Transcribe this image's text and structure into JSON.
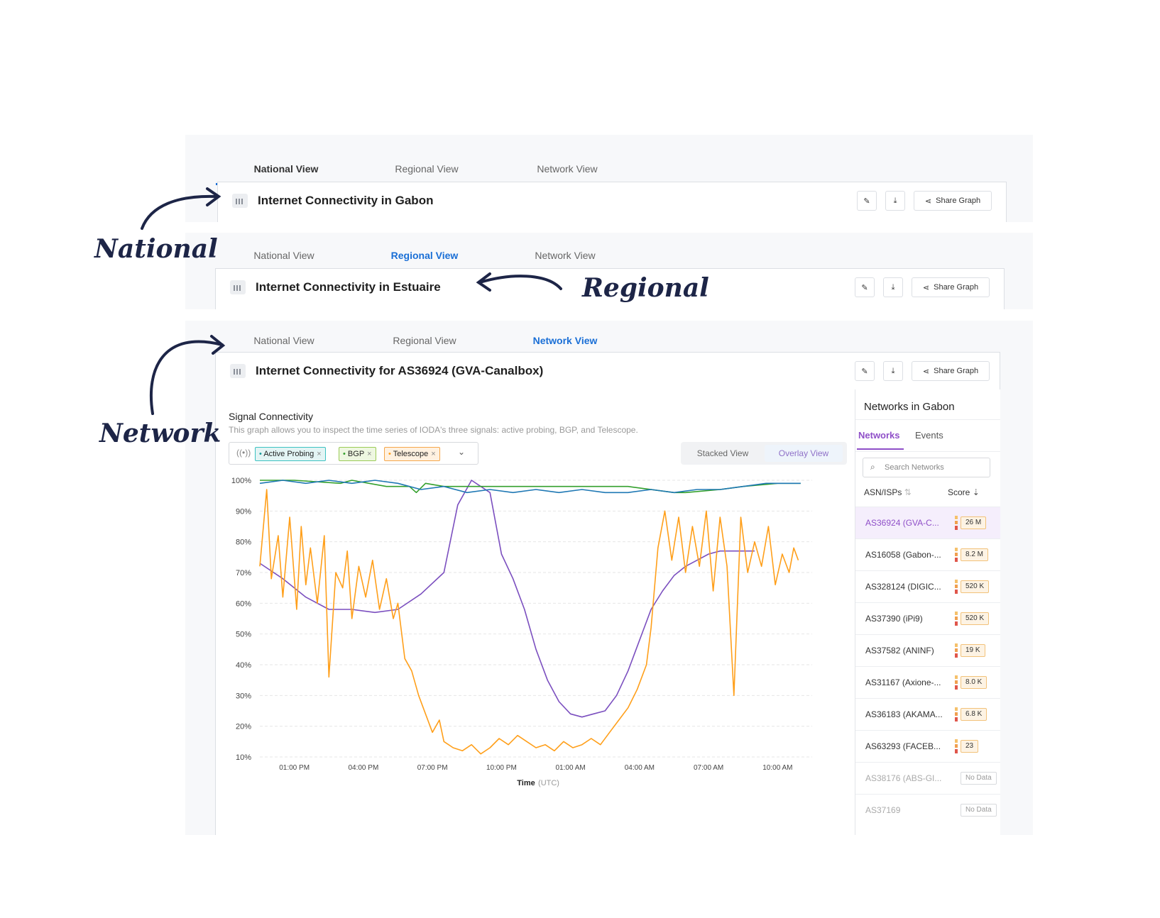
{
  "tabs": [
    "National View",
    "Regional View",
    "Network View"
  ],
  "panels": {
    "national": {
      "title": "Internet Connectivity in Gabon"
    },
    "regional": {
      "title": "Internet Connectivity in Estuaire"
    },
    "network": {
      "title": "Internet Connectivity for AS36924 (GVA-Canalbox)"
    }
  },
  "buttons": {
    "share": "Share Graph"
  },
  "annotations": {
    "national": "National",
    "regional": "Regional",
    "network": "Network"
  },
  "signal": {
    "title": "Signal Connectivity",
    "description": "This graph allows you to inspect the time series of IODA's three signals: active probing, BGP, and Telescope.",
    "chips": [
      {
        "label": "Active Probing",
        "color": "#1f78b4"
      },
      {
        "label": "BGP",
        "color": "#33a02c"
      },
      {
        "label": "Telescope",
        "color": "#ff9f1a"
      }
    ],
    "view_toggle": [
      "Stacked View",
      "Overlay View"
    ]
  },
  "sidebar": {
    "title": "Networks  in Gabon",
    "tabs": [
      "Networks",
      "Events"
    ],
    "search_placeholder": "Search Networks",
    "columns": [
      "ASN/ISPs",
      "Score"
    ],
    "rows": [
      {
        "name": "AS36924 (GVA-C...",
        "score": "26 M",
        "selected": true
      },
      {
        "name": "AS16058 (Gabon-...",
        "score": "8.2 M"
      },
      {
        "name": "AS328124 (DIGIC...",
        "score": "520 K"
      },
      {
        "name": "AS37390 (iPi9)",
        "score": "520 K"
      },
      {
        "name": "AS37582 (ANINF)",
        "score": "19 K"
      },
      {
        "name": "AS31167 (Axione-...",
        "score": "8.0 K"
      },
      {
        "name": "AS36183 (AKAMA...",
        "score": "6.8 K"
      },
      {
        "name": "AS63293 (FACEB...",
        "score": "23"
      },
      {
        "name": "AS38176 (ABS-GI...",
        "score": "No Data",
        "nodata": true
      },
      {
        "name": "AS37169",
        "score": "No Data",
        "nodata": true
      }
    ]
  },
  "chart_data": {
    "type": "line",
    "x_ticks": [
      "01:00 PM",
      "04:00 PM",
      "07:00 PM",
      "10:00 PM",
      "01:00 AM",
      "04:00 AM",
      "07:00 AM",
      "10:00 AM"
    ],
    "y_ticks": [
      "100%",
      "90%",
      "80%",
      "70%",
      "60%",
      "50%",
      "40%",
      "30%",
      "20%",
      "10%"
    ],
    "ylim": [
      10,
      100
    ],
    "xlabel": "Time",
    "xlabel_unit": "(UTC)",
    "grid": true,
    "series": [
      {
        "name": "BGP",
        "color": "#33a02c",
        "x": [
          0,
          1.5,
          3.5,
          4,
          5.5,
          6.5,
          6.8,
          7.2,
          8,
          10,
          12,
          14.5,
          16,
          18,
          18.5,
          20,
          21,
          22.5,
          23.5
        ],
        "y": [
          100,
          100,
          99,
          100,
          98,
          98,
          96,
          99,
          98,
          98,
          98,
          98,
          98,
          96,
          96,
          97,
          98,
          99,
          99
        ]
      },
      {
        "name": "Active Probing",
        "color": "#1f78b4",
        "x": [
          0,
          1,
          2,
          3,
          4,
          5,
          6,
          7,
          8,
          9,
          10,
          11,
          12,
          13,
          14,
          15,
          16,
          17,
          18,
          19,
          20,
          21,
          22,
          23,
          23.5
        ],
        "y": [
          99,
          100,
          99,
          100,
          99,
          100,
          99,
          97,
          98,
          96,
          97,
          96,
          97,
          96,
          97,
          96,
          96,
          97,
          96,
          97,
          97,
          98,
          99,
          99,
          99
        ]
      },
      {
        "name": "Telescope",
        "color": "#ff9f1a",
        "x": [
          0,
          0.3,
          0.5,
          0.8,
          1,
          1.3,
          1.6,
          1.8,
          2,
          2.2,
          2.5,
          2.8,
          3,
          3.3,
          3.6,
          3.8,
          4,
          4.3,
          4.6,
          4.9,
          5.2,
          5.5,
          5.8,
          6,
          6.3,
          6.6,
          6.9,
          7.2,
          7.5,
          7.8,
          8,
          8.4,
          8.8,
          9.2,
          9.6,
          10,
          10.4,
          10.8,
          11.2,
          11.6,
          12,
          12.4,
          12.8,
          13.2,
          13.6,
          14,
          14.4,
          14.8,
          15.2,
          15.6,
          16,
          16.4,
          16.8,
          17,
          17.3,
          17.6,
          17.9,
          18.2,
          18.5,
          18.8,
          19.1,
          19.4,
          19.7,
          20,
          20.3,
          20.6,
          20.9,
          21.2,
          21.5,
          21.8,
          22.1,
          22.4,
          22.7,
          23,
          23.2,
          23.4
        ],
        "y": [
          72,
          97,
          68,
          82,
          62,
          88,
          58,
          85,
          66,
          78,
          60,
          82,
          36,
          70,
          65,
          77,
          55,
          72,
          62,
          74,
          58,
          68,
          55,
          60,
          42,
          38,
          30,
          24,
          18,
          22,
          15,
          13,
          12,
          14,
          11,
          13,
          16,
          14,
          17,
          15,
          13,
          14,
          12,
          15,
          13,
          14,
          16,
          14,
          18,
          22,
          26,
          32,
          40,
          52,
          78,
          90,
          74,
          88,
          70,
          85,
          72,
          90,
          64,
          88,
          72,
          30,
          88,
          70,
          80,
          72,
          85,
          66,
          76,
          70,
          78,
          74
        ]
      },
      {
        "name": "Telescope (trend)",
        "color": "#7b4fbf",
        "x": [
          0,
          1,
          2,
          3,
          4,
          5,
          6,
          7,
          8,
          8.6,
          9.2,
          9.6,
          10,
          10.5,
          11,
          11.5,
          12,
          12.5,
          13,
          13.5,
          14,
          14.5,
          15,
          15.5,
          16,
          16.5,
          17,
          17.5,
          18,
          18.5,
          19,
          19.5,
          20,
          20.5,
          21,
          21.5
        ],
        "y": [
          73,
          68,
          62,
          58,
          58,
          57,
          58,
          63,
          70,
          92,
          100,
          98,
          96,
          76,
          68,
          58,
          45,
          35,
          28,
          24,
          23,
          24,
          25,
          30,
          38,
          48,
          58,
          64,
          69,
          72,
          74,
          76,
          77,
          77,
          77,
          77
        ]
      }
    ]
  }
}
